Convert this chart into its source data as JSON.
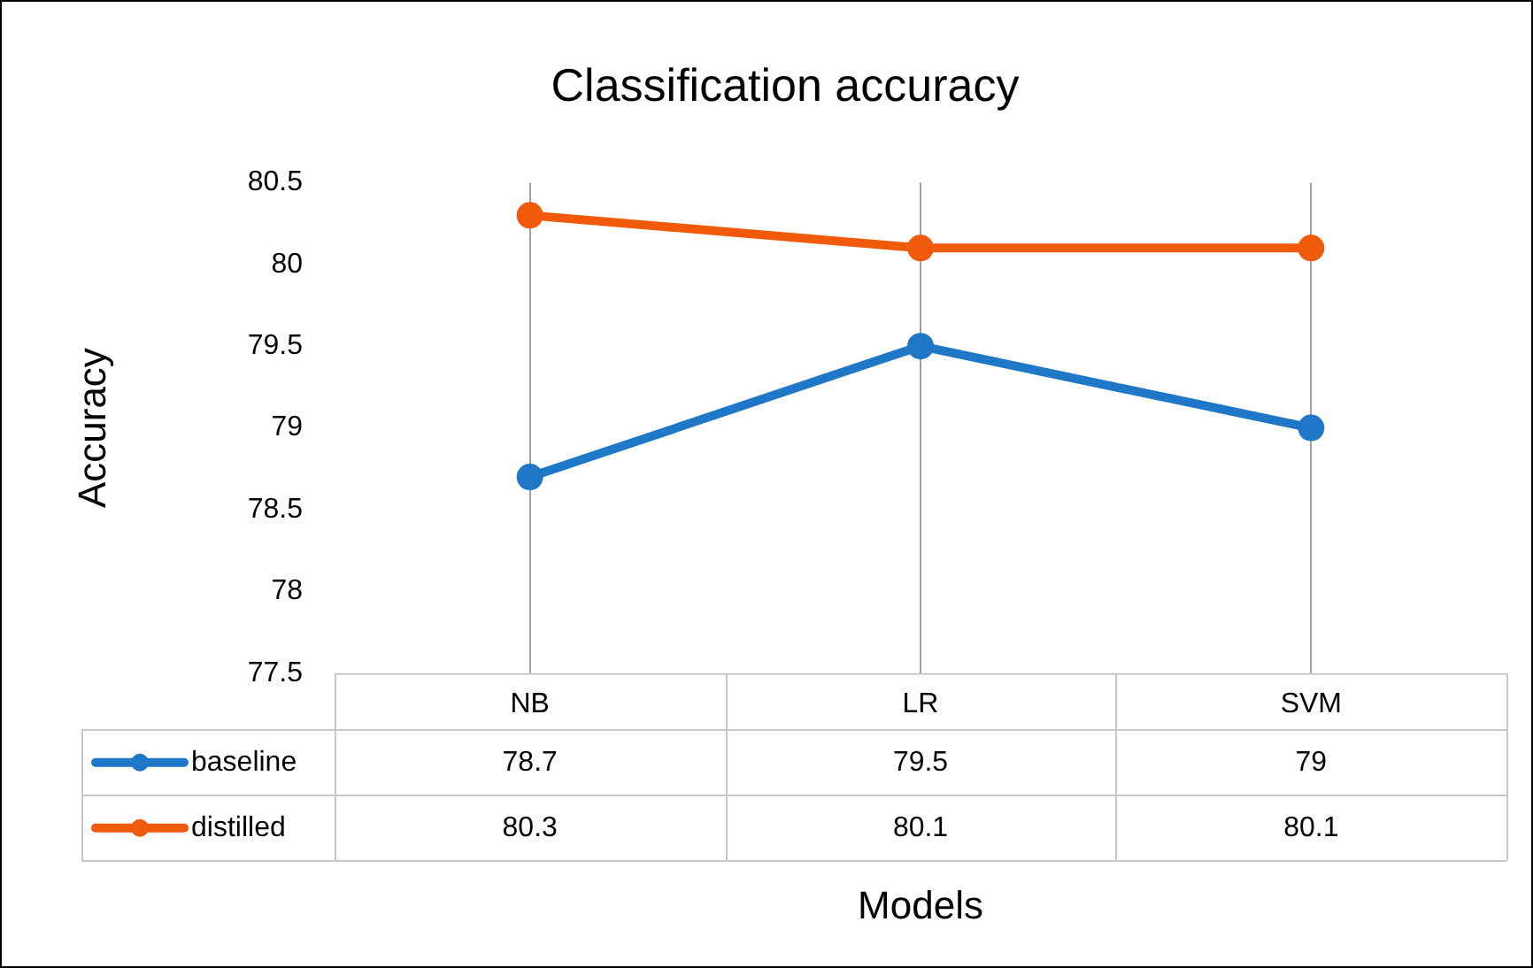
{
  "chart_data": {
    "type": "line",
    "title": "Classification accuracy",
    "xlabel": "Models",
    "ylabel": "Accuracy",
    "categories": [
      "NB",
      "LR",
      "SVM"
    ],
    "series": [
      {
        "name": "baseline",
        "color": "#1f77c8",
        "values": [
          78.7,
          79.5,
          79
        ]
      },
      {
        "name": "distilled",
        "color": "#f05a0a",
        "values": [
          80.3,
          80.1,
          80.1
        ]
      }
    ],
    "ylim": [
      77.5,
      80.5
    ],
    "yticks": [
      77.5,
      78,
      78.5,
      79,
      79.5,
      80,
      80.5
    ],
    "grid": "x",
    "legend": "bottom",
    "marker": "circle",
    "data_labels": true
  }
}
